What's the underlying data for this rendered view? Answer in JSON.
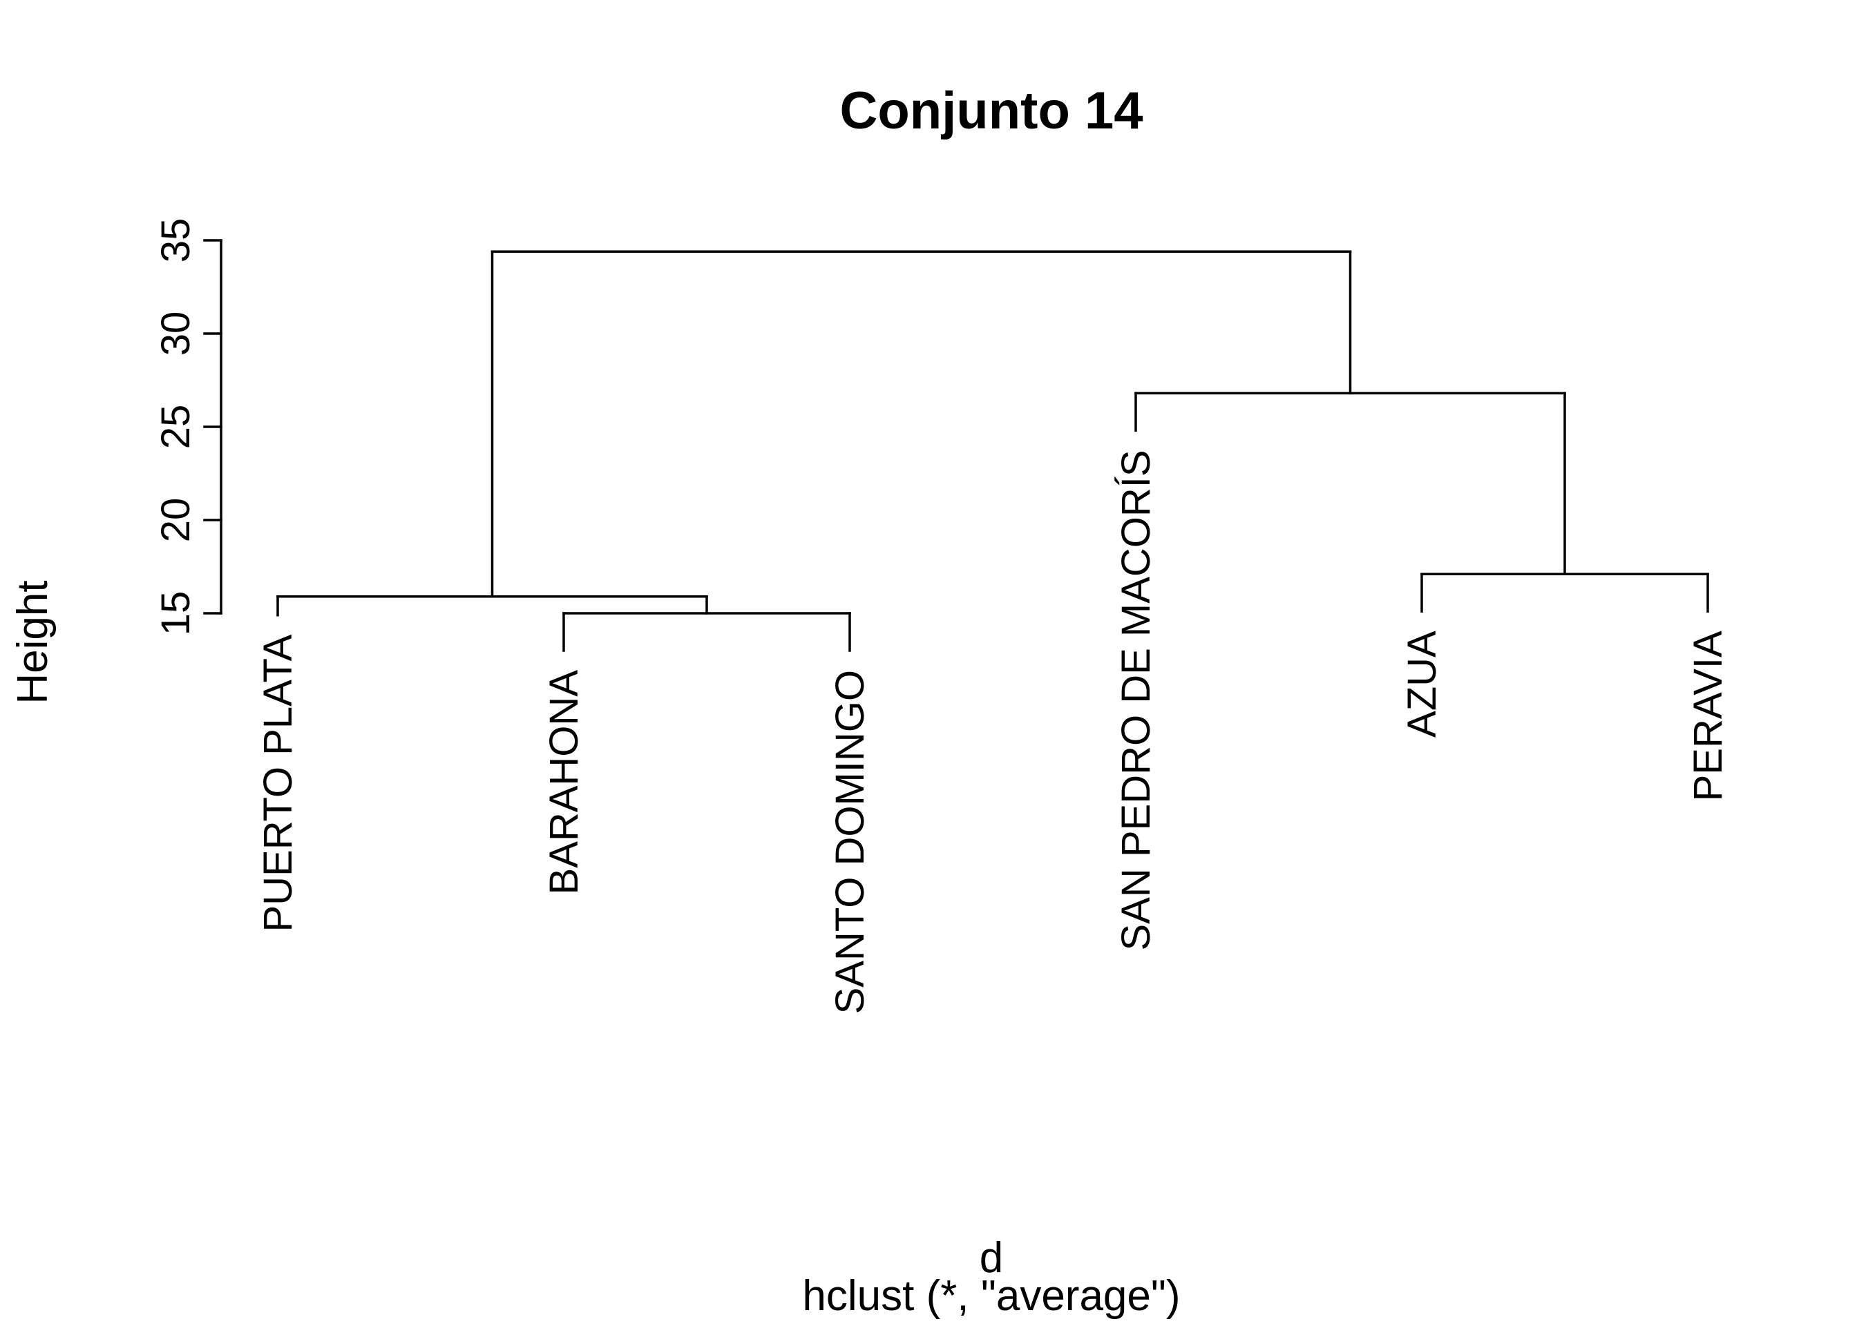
{
  "chart_data": {
    "type": "dendrogram",
    "title": "Conjunto 14",
    "xlabel": "d",
    "sublabel": "hclust (*, \"average\")",
    "ylabel": "Height",
    "ylim": [
      15,
      35
    ],
    "yticks": [
      "15",
      "20",
      "25",
      "30",
      "35"
    ],
    "leaves": [
      "PUERTO PLATA",
      "BARAHONA",
      "SANTO DOMINGO",
      "SAN PEDRO DE MACORÍS",
      "AZUA",
      "PERAVIA"
    ],
    "merges": [
      {
        "id": "m1",
        "left": "BARAHONA",
        "right": "SANTO DOMINGO",
        "height": 15.0
      },
      {
        "id": "m2",
        "left": "PUERTO PLATA",
        "right": "m1",
        "height": 15.9
      },
      {
        "id": "m3",
        "left": "AZUA",
        "right": "PERAVIA",
        "height": 17.1
      },
      {
        "id": "m4",
        "left": "SAN PEDRO DE MACORÍS",
        "right": "m3",
        "height": 26.8
      },
      {
        "id": "m5",
        "left": "m2",
        "right": "m4",
        "height": 34.4
      }
    ],
    "leaf_heights": {
      "PUERTO PLATA": 14.9,
      "BARAHONA": 13.0,
      "SANTO DOMINGO": 13.0,
      "SAN PEDRO DE MACORÍS": 24.8,
      "AZUA": 15.1,
      "PERAVIA": 15.1
    }
  }
}
